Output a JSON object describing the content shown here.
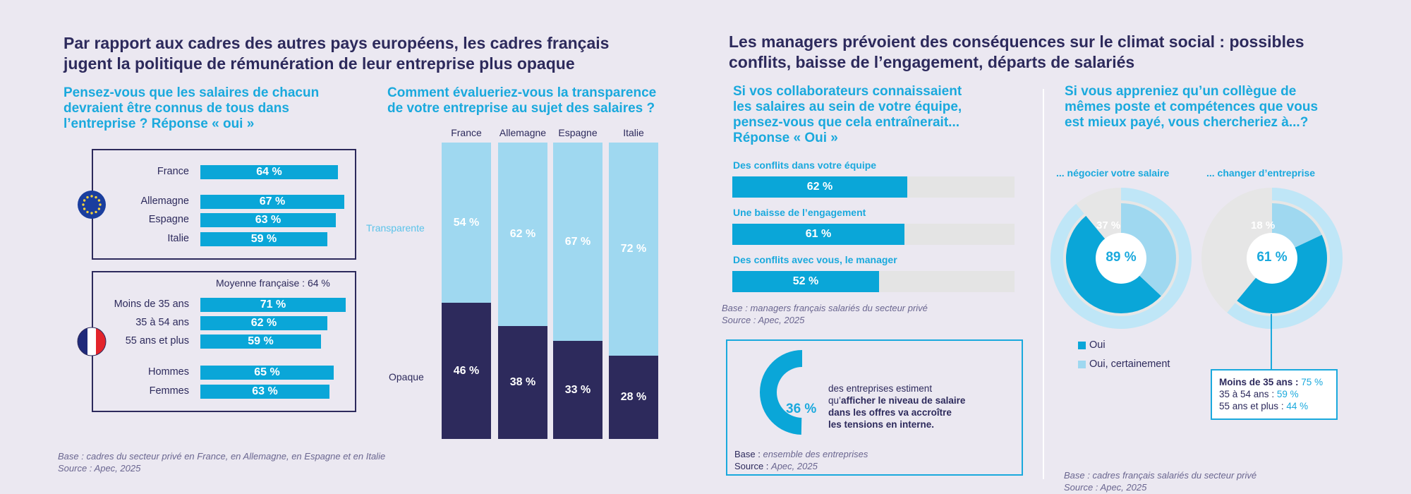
{
  "left": {
    "title_line1": "Par rapport aux cadres des autres pays européens, les cadres français",
    "title_line2": "jugent la politique de rémunération de leur entreprise plus opaque",
    "q1": {
      "line1": "Pensez-vous que les salaires de chacun",
      "line2": "devraient être connus de tous dans",
      "line3": "l’entreprise ? Réponse « oui »"
    },
    "q2": {
      "line1": "Comment évalueriez-vous la transparence",
      "line2": "de votre entreprise au sujet des salaires ?"
    },
    "base": "Base : cadres du secteur privé en France, en Allemagne, en Espagne et en Italie",
    "source": "Source : Apec, 2025"
  },
  "right": {
    "title_line1": "Les managers prévoient des conséquences sur le climat social : possibles",
    "title_line2": "conflits, baisse de l’engagement, départs de salariés",
    "q3": {
      "line1": "Si vos collaborateurs connaissaient",
      "line2": "les salaires au sein de votre équipe,",
      "line3": "pensez-vous que cela entraînerait...",
      "line4": "Réponse « Oui »"
    },
    "base1": "Base : managers français salariés du secteur privé",
    "source1": "Source : Apec, 2025",
    "stat": {
      "value": "36 %",
      "text1": "des entreprises estiment",
      "text2a": "qu’",
      "text2b": "afficher le niveau de salaire",
      "text3": "dans les offres va accroître",
      "text4": "les tensions en interne.",
      "base_label": "Base : ",
      "base_value": "ensemble des entreprises",
      "source_label": "Source : ",
      "source_value": "Apec, 2025"
    },
    "q4": {
      "line1": "Si vous appreniez qu’un collègue de",
      "line2": "mêmes poste et compétences que vous",
      "line3": "est mieux payé, vous chercheriez à...?"
    },
    "legend": {
      "oui": "Oui",
      "oui_certainement": "Oui, certainement"
    },
    "age_box": {
      "rows": [
        {
          "label": "Moins de 35 ans",
          "sep": " : ",
          "value": "75 %"
        },
        {
          "label": "35 à 54 ans",
          "sep": " : ",
          "value": "59 %"
        },
        {
          "label": "55 ans et plus",
          "sep": " : ",
          "value": "44 %"
        }
      ]
    },
    "base2": "Base : cadres français salariés du secteur privé",
    "source2": "Source : Apec, 2025"
  },
  "chart_data": [
    {
      "type": "bar",
      "orientation": "horizontal",
      "group": "countries",
      "categories": [
        "France",
        "Allemagne",
        "Espagne",
        "Italie"
      ],
      "values": [
        64,
        67,
        63,
        59
      ],
      "labels": [
        "64 %",
        "67 %",
        "63 %",
        "59 %"
      ],
      "xlim": [
        0,
        100
      ]
    },
    {
      "type": "bar",
      "orientation": "horizontal",
      "group": "france_profiles",
      "annotation": "Moyenne française : 64 %",
      "categories": [
        "Moins de 35 ans",
        "35 à 54 ans",
        "55 ans et plus",
        "Hommes",
        "Femmes"
      ],
      "values": [
        71,
        62,
        59,
        65,
        63
      ],
      "labels": [
        "71 %",
        "62 %",
        "59 %",
        "65 %",
        "63 %"
      ],
      "xlim": [
        0,
        100
      ]
    },
    {
      "type": "bar",
      "stacked": true,
      "categories": [
        "France",
        "Allemagne",
        "Espagne",
        "Italie"
      ],
      "series": [
        {
          "name": "Transparente",
          "values": [
            54,
            62,
            67,
            72
          ],
          "labels": [
            "54 %",
            "62 %",
            "67 %",
            "72 %"
          ],
          "color": "#9fd8f0"
        },
        {
          "name": "Opaque",
          "values": [
            46,
            38,
            33,
            28
          ],
          "labels": [
            "46 %",
            "38 %",
            "33 %",
            "28 %"
          ],
          "color": "#2d2a5c"
        }
      ],
      "ylim": [
        0,
        100
      ]
    },
    {
      "type": "bar",
      "orientation": "horizontal",
      "categories": [
        "Des conflits dans votre équipe",
        "Une baisse de l’engagement",
        "Des conflits avec vous, le manager"
      ],
      "values": [
        62,
        61,
        52
      ],
      "labels": [
        "62 %",
        "61 %",
        "52 %"
      ],
      "xlim": [
        0,
        100
      ]
    },
    {
      "type": "pie",
      "variant": "donut",
      "title": "... négocier votre salaire",
      "center_label": "89 %",
      "series": [
        {
          "name": "Oui",
          "value": 89
        },
        {
          "name": "Oui, certainement",
          "value": 37,
          "label": "37 %"
        }
      ]
    },
    {
      "type": "pie",
      "variant": "donut",
      "title": "... changer d’entreprise",
      "center_label": "61 %",
      "series": [
        {
          "name": "Oui",
          "value": 61
        },
        {
          "name": "Oui, certainement",
          "value": 18,
          "label": "18 %"
        }
      ]
    },
    {
      "type": "pie",
      "variant": "gauge",
      "value": 36,
      "label": "36 %"
    }
  ],
  "colors": {
    "navy": "#2d2a5c",
    "cyan": "#0aa6d8",
    "light_blue": "#9fd8f0",
    "pale_blue": "#bfe6f7",
    "track": "#e4e4e4"
  }
}
